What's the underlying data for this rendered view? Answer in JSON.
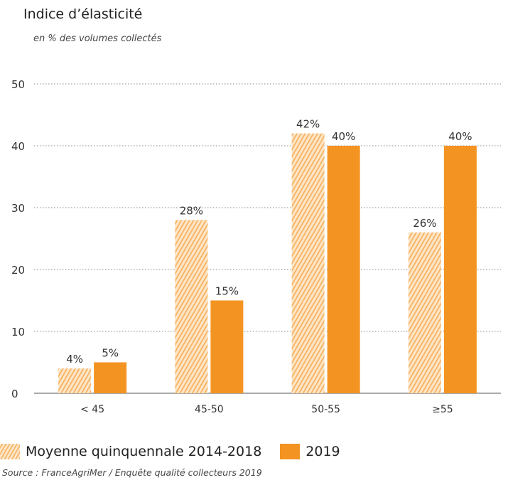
{
  "chart_data": {
    "type": "bar",
    "title": "Indice d’élasticité",
    "subtitle": "en % des volumes collectés",
    "categories": [
      "< 45",
      "45-50",
      "50-55",
      "≥55"
    ],
    "series": [
      {
        "name": "Moyenne quinquennale 2014-2018",
        "values": [
          4,
          28,
          42,
          26
        ],
        "labels": [
          "4%",
          "28%",
          "42%",
          "26%"
        ],
        "style": "hatched",
        "color": "#f7b260"
      },
      {
        "name": "2019",
        "values": [
          5,
          15,
          40,
          40
        ],
        "labels": [
          "5%",
          "15%",
          "40%",
          "40%"
        ],
        "style": "solid",
        "color": "#f39422"
      }
    ],
    "ylim": [
      0,
      50
    ],
    "yticks": [
      0,
      10,
      20,
      30,
      40,
      50
    ],
    "grid": true,
    "legend_position": "bottom-left"
  },
  "source": "Source : FranceAgriMer / Enquête qualité collecteurs 2019"
}
